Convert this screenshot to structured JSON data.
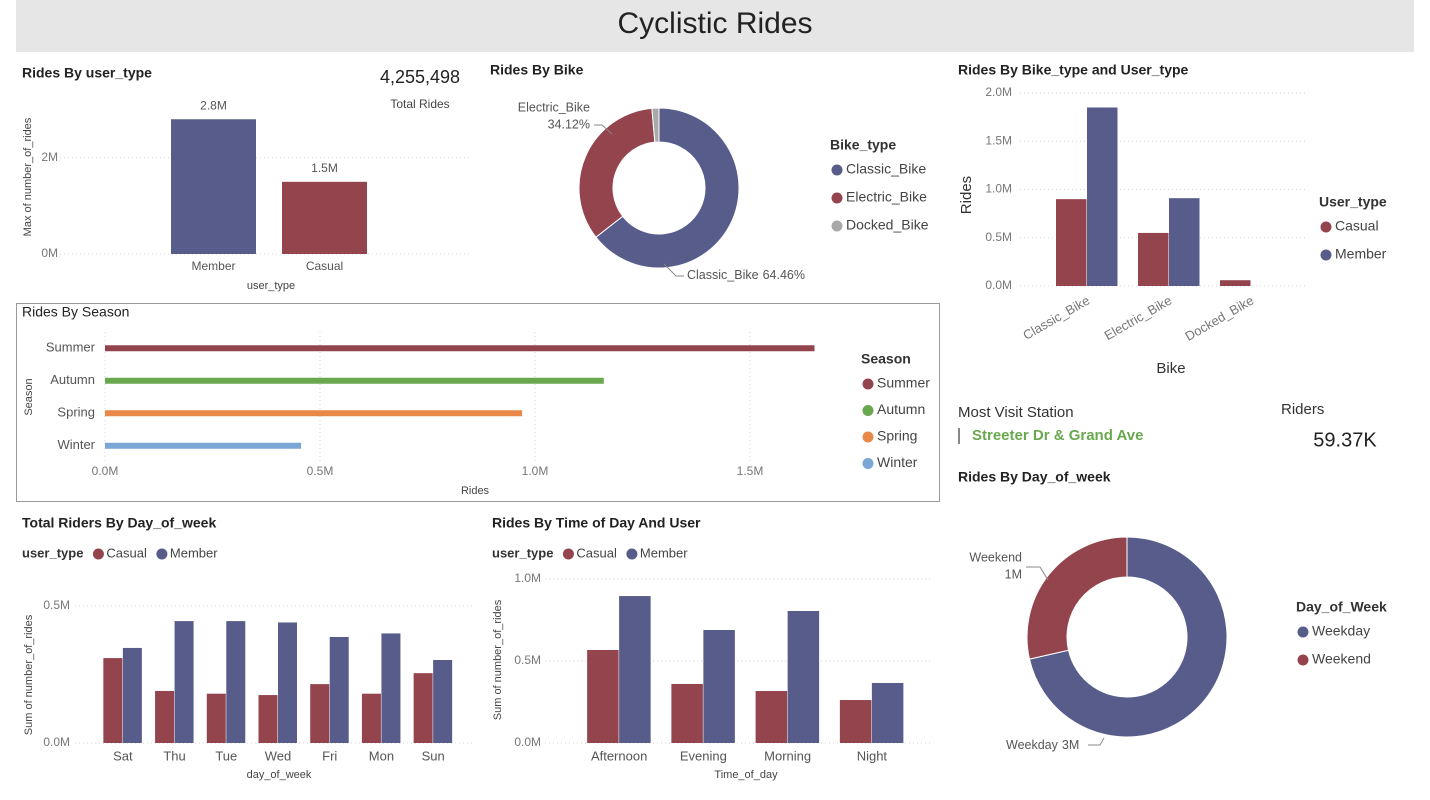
{
  "header": {
    "title": "Cyclistic Rides"
  },
  "cards": [
    {
      "value": "4,255,498",
      "label": "Total Rides"
    },
    {
      "label": "Most Visit Station",
      "value": "Streeter Dr & Grand Ave"
    },
    {
      "label": "Riders",
      "value": "59.37K"
    }
  ],
  "chart_data": [
    {
      "type": "bar",
      "title": "Rides By user_type",
      "x_label": "user_type",
      "y_label": "Max of number_of_rides",
      "categories": [
        "Member",
        "Casual"
      ],
      "values": [
        2800000,
        1500000
      ],
      "value_labels": [
        "2.8M",
        "1.5M"
      ],
      "colors": [
        "#575c8b",
        "#94444d"
      ],
      "ylim": [
        0,
        3200000
      ],
      "yticks": [
        {
          "value": 0,
          "label": "0M"
        },
        {
          "value": 2000000,
          "label": "2M"
        }
      ],
      "grid": true
    },
    {
      "type": "pie",
      "donut": true,
      "title": "Rides By Bike",
      "legend_title": "Bike_type",
      "categories": [
        "Classic_Bike",
        "Electric_Bike",
        "Docked_Bike"
      ],
      "values": [
        64.46,
        34.12,
        1.42
      ],
      "value_labels": [
        "64.46%",
        "34.12%",
        null
      ],
      "colors": [
        "#575c8b",
        "#94444d",
        "#a9a9a9"
      ]
    },
    {
      "type": "grouped_bar",
      "title": "Rides By Bike_type and User_type",
      "x_label": "Bike",
      "y_label": "Rides",
      "legend_title": "User_type",
      "categories": [
        "Classic_Bike",
        "Electric_Bike",
        "Docked_Bike"
      ],
      "series": [
        {
          "name": "Casual",
          "color": "#94444d",
          "values": [
            900000,
            550000,
            60000
          ]
        },
        {
          "name": "Member",
          "color": "#575c8b",
          "values": [
            1850000,
            910000,
            null
          ]
        }
      ],
      "ylim": [
        0,
        2000000
      ],
      "yticks": [
        {
          "value": 0,
          "label": "0.0M"
        },
        {
          "value": 500000,
          "label": "0.5M"
        },
        {
          "value": 1000000,
          "label": "1.0M"
        },
        {
          "value": 1500000,
          "label": "1.5M"
        },
        {
          "value": 2000000,
          "label": "2.0M"
        }
      ],
      "grid": true
    },
    {
      "type": "hbar",
      "title": "Rides By Season",
      "x_label": "Rides",
      "y_label": "Season",
      "legend_title": "Season",
      "categories": [
        "Summer",
        "Autumn",
        "Spring",
        "Winter"
      ],
      "values": [
        1650000,
        1160000,
        970000,
        456000
      ],
      "colors": [
        "#94444d",
        "#6aa84f",
        "#e8894a",
        "#7ba7d7"
      ],
      "xlim": [
        0,
        1900000
      ],
      "xticks": [
        {
          "value": 0,
          "label": "0.0M"
        },
        {
          "value": 500000,
          "label": "0.5M"
        },
        {
          "value": 1000000,
          "label": "1.0M"
        },
        {
          "value": 1500000,
          "label": "1.5M"
        }
      ],
      "grid": true
    },
    {
      "type": "grouped_bar",
      "title": "Total Riders By Day_of_week",
      "x_label": "day_of_week",
      "y_label": "Sum of number_of_rides",
      "legend_title": "user_type",
      "categories": [
        "Sat",
        "Thu",
        "Tue",
        "Wed",
        "Fri",
        "Mon",
        "Sun"
      ],
      "series": [
        {
          "name": "Casual",
          "color": "#94444d",
          "values": [
            310000,
            190000,
            180000,
            175000,
            215000,
            180000,
            255000
          ]
        },
        {
          "name": "Member",
          "color": "#575c8b",
          "values": [
            347000,
            445000,
            445000,
            440000,
            387000,
            400000,
            303000
          ]
        }
      ],
      "ylim": [
        0,
        560000
      ],
      "yticks": [
        {
          "value": 0,
          "label": "0.0M"
        },
        {
          "value": 500000,
          "label": "0.5M"
        }
      ],
      "grid": true
    },
    {
      "type": "grouped_bar",
      "title": "Rides By Time of Day And User",
      "x_label": "Time_of_day",
      "y_label": "Sum of number_of_rides",
      "legend_title": "user_type",
      "categories": [
        "Afternoon",
        "Evening",
        "Morning",
        "Night"
      ],
      "series": [
        {
          "name": "Casual",
          "color": "#94444d",
          "values": [
            567000,
            360000,
            317000,
            262000
          ]
        },
        {
          "name": "Member",
          "color": "#575c8b",
          "values": [
            896000,
            689000,
            805000,
            366000
          ]
        }
      ],
      "ylim": [
        0,
        1000000
      ],
      "yticks": [
        {
          "value": 0,
          "label": "0.0M"
        },
        {
          "value": 500000,
          "label": "0.5M"
        },
        {
          "value": 1000000,
          "label": "1.0M"
        }
      ],
      "grid": true
    },
    {
      "type": "pie",
      "donut": true,
      "title": "Rides By Day_of_week",
      "legend_title": "Day_of_Week",
      "categories": [
        "Weekday",
        "Weekend"
      ],
      "values": [
        3040000,
        1215000
      ],
      "value_labels": [
        "3M",
        "1M"
      ],
      "colors": [
        "#575c8b",
        "#94444d"
      ]
    }
  ]
}
